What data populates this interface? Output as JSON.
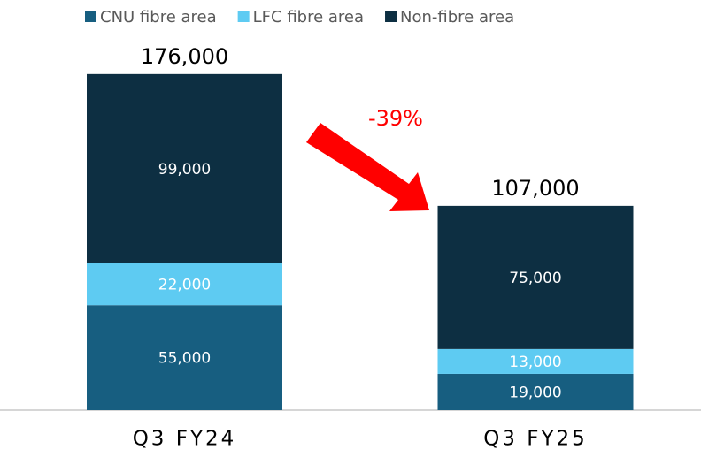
{
  "chart_data": {
    "type": "stacked-bar",
    "categories": [
      "Q3 FY24",
      "Q3 FY25"
    ],
    "series": [
      {
        "name": "CNU fibre area",
        "color": "#175e80",
        "values": [
          55000,
          19000
        ],
        "value_labels": [
          "55,000",
          "19,000"
        ]
      },
      {
        "name": "LFC fibre area",
        "color": "#5ecbf2",
        "values": [
          22000,
          13000
        ],
        "value_labels": [
          "22,000",
          "13,000"
        ]
      },
      {
        "name": "Non-fibre area",
        "color": "#0d2f42",
        "values": [
          99000,
          75000
        ],
        "value_labels": [
          "99,000",
          "75,000"
        ]
      }
    ],
    "totals": [
      176000,
      107000
    ],
    "total_labels": [
      "176,000",
      "107,000"
    ],
    "annotation": "-39%",
    "ylim": [
      0,
      200000
    ],
    "legend": "top"
  }
}
